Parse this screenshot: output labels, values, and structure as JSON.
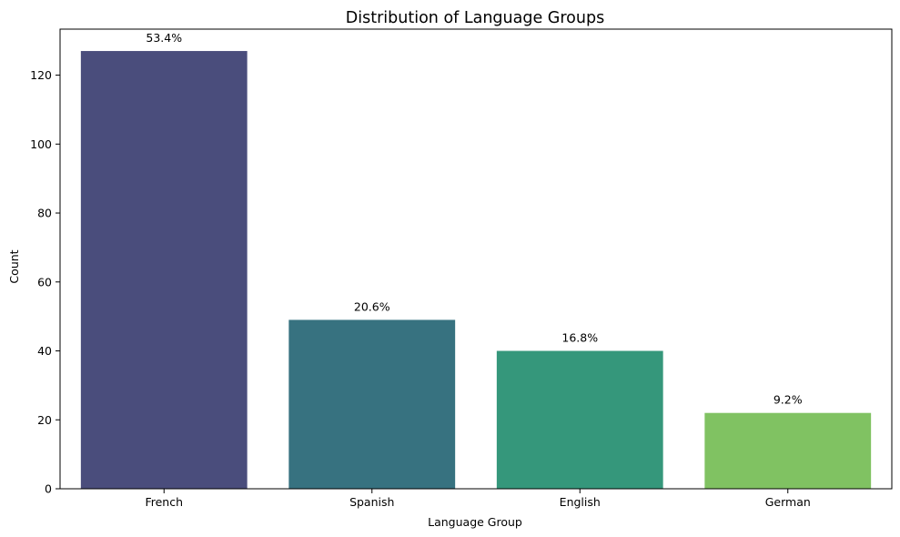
{
  "chart_data": {
    "type": "bar",
    "title": "Distribution of Language Groups",
    "xlabel": "Language Group",
    "ylabel": "Count",
    "categories": [
      "French",
      "Spanish",
      "English",
      "German"
    ],
    "values": [
      127,
      49,
      40,
      22
    ],
    "data_labels": [
      "53.4%",
      "20.6%",
      "16.8%",
      "9.2%"
    ],
    "colors": [
      "#482878",
      "#26828e",
      "#35b779",
      "#7ad151"
    ],
    "bar_colors_rendered": [
      "#4a4d7c",
      "#377280",
      "#35977b",
      "#80c262"
    ],
    "ylim": [
      0,
      133.35
    ],
    "yticks": [
      0,
      20,
      40,
      60,
      80,
      100,
      120
    ],
    "grid": false,
    "legend": "none"
  }
}
